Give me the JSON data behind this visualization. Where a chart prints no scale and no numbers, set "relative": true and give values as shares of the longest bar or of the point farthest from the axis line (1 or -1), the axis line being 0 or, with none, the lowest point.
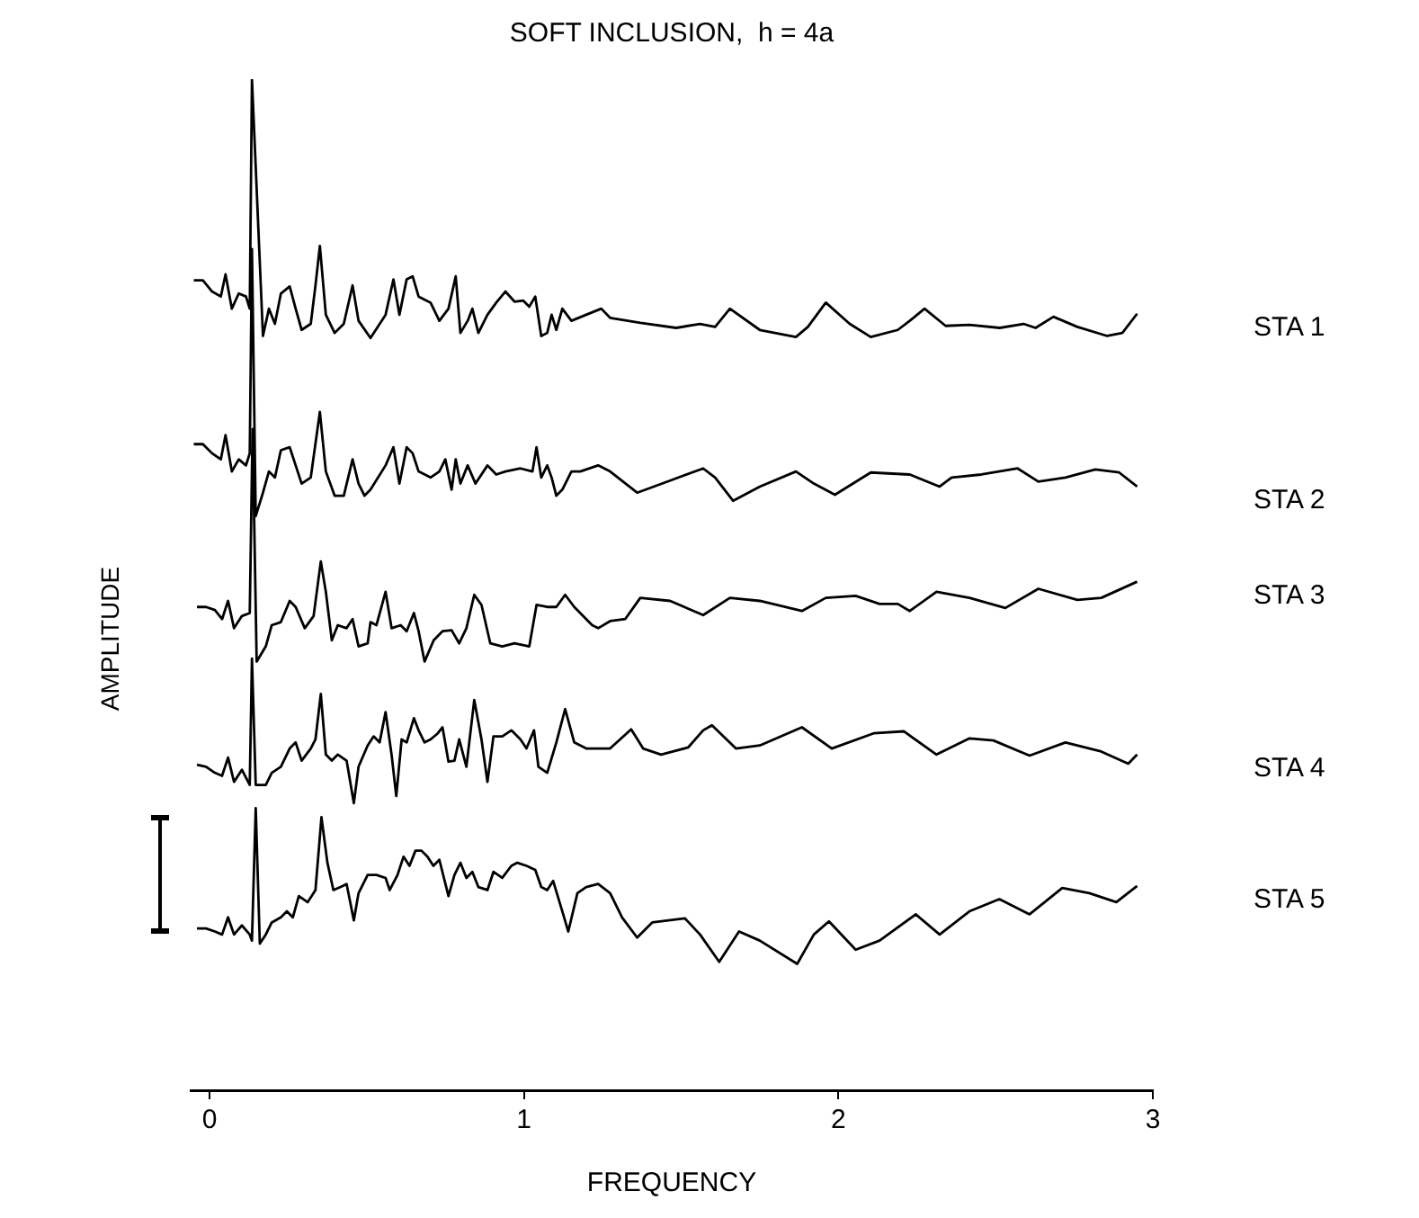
{
  "chart_data": {
    "type": "line",
    "title": "SOFT INCLUSION,  h = 4a",
    "xlabel": "FREQUENCY",
    "ylabel": "AMPLITUDE",
    "relative": true,
    "legend": false,
    "grid": false,
    "xlim": [
      -0.06,
      3
    ],
    "xticks": [
      0,
      1,
      2,
      3
    ],
    "series": [
      {
        "name": "STA 1",
        "color": "#000000",
        "x": [
          -0.05,
          -0.021,
          0.008,
          0.036,
          0.051,
          0.071,
          0.093,
          0.116,
          0.128,
          0.135,
          0.17,
          0.189,
          0.208,
          0.227,
          0.255,
          0.274,
          0.293,
          0.322,
          0.337,
          0.351,
          0.37,
          0.398,
          0.427,
          0.455,
          0.474,
          0.512,
          0.56,
          0.585,
          0.604,
          0.627,
          0.646,
          0.665,
          0.703,
          0.731,
          0.76,
          0.783,
          0.798,
          0.821,
          0.836,
          0.855,
          0.884,
          0.912,
          0.941,
          0.97,
          0.998,
          1.017,
          1.036,
          1.055,
          1.074,
          1.088,
          1.103,
          1.122,
          1.151,
          1.198,
          1.246,
          1.274,
          1.37,
          1.484,
          1.56,
          1.608,
          1.655,
          1.75,
          1.865,
          1.903,
          1.96,
          2.036,
          2.103,
          2.189,
          2.227,
          2.274,
          2.341,
          2.417,
          2.513,
          2.589,
          2.627,
          2.684,
          2.76,
          2.855,
          2.903,
          2.95
        ],
        "values": [
          0.801,
          0.801,
          0.79,
          0.785,
          0.807,
          0.773,
          0.788,
          0.785,
          0.773,
          1.0,
          0.746,
          0.773,
          0.758,
          0.788,
          0.795,
          0.773,
          0.752,
          0.758,
          0.796,
          0.835,
          0.767,
          0.749,
          0.758,
          0.796,
          0.761,
          0.744,
          0.767,
          0.802,
          0.767,
          0.802,
          0.805,
          0.785,
          0.779,
          0.761,
          0.773,
          0.805,
          0.749,
          0.761,
          0.773,
          0.749,
          0.767,
          0.779,
          0.79,
          0.78,
          0.781,
          0.775,
          0.785,
          0.746,
          0.749,
          0.767,
          0.752,
          0.773,
          0.761,
          0.767,
          0.773,
          0.764,
          0.759,
          0.754,
          0.758,
          0.755,
          0.773,
          0.752,
          0.745,
          0.755,
          0.779,
          0.758,
          0.745,
          0.752,
          0.761,
          0.773,
          0.756,
          0.757,
          0.754,
          0.758,
          0.754,
          0.765,
          0.755,
          0.746,
          0.749,
          0.768
        ]
      },
      {
        "name": "STA 2",
        "color": "#000000",
        "x": [
          -0.05,
          -0.021,
          0.008,
          0.036,
          0.051,
          0.071,
          0.093,
          0.116,
          0.128,
          0.135,
          0.147,
          0.17,
          0.189,
          0.208,
          0.227,
          0.255,
          0.274,
          0.293,
          0.322,
          0.351,
          0.37,
          0.398,
          0.427,
          0.455,
          0.474,
          0.493,
          0.512,
          0.56,
          0.585,
          0.604,
          0.627,
          0.646,
          0.665,
          0.703,
          0.731,
          0.75,
          0.77,
          0.783,
          0.798,
          0.821,
          0.846,
          0.884,
          0.912,
          0.941,
          0.989,
          1.027,
          1.04,
          1.055,
          1.074,
          1.088,
          1.103,
          1.122,
          1.151,
          1.179,
          1.236,
          1.274,
          1.36,
          1.465,
          1.57,
          1.608,
          1.665,
          1.75,
          1.865,
          1.922,
          1.989,
          2.103,
          2.227,
          2.322,
          2.36,
          2.455,
          2.57,
          2.636,
          2.722,
          2.817,
          2.893,
          2.95
        ],
        "values": [
          0.639,
          0.639,
          0.63,
          0.624,
          0.648,
          0.612,
          0.624,
          0.618,
          0.63,
          0.832,
          0.568,
          0.591,
          0.612,
          0.606,
          0.633,
          0.636,
          0.618,
          0.6,
          0.606,
          0.671,
          0.612,
          0.588,
          0.588,
          0.624,
          0.6,
          0.588,
          0.594,
          0.618,
          0.636,
          0.6,
          0.636,
          0.63,
          0.612,
          0.606,
          0.612,
          0.624,
          0.594,
          0.624,
          0.6,
          0.618,
          0.6,
          0.618,
          0.609,
          0.612,
          0.615,
          0.612,
          0.636,
          0.606,
          0.618,
          0.606,
          0.588,
          0.594,
          0.612,
          0.612,
          0.618,
          0.612,
          0.591,
          0.603,
          0.615,
          0.606,
          0.583,
          0.597,
          0.612,
          0.6,
          0.589,
          0.611,
          0.609,
          0.597,
          0.606,
          0.609,
          0.615,
          0.602,
          0.606,
          0.614,
          0.611,
          0.597
        ]
      },
      {
        "name": "STA 3",
        "color": "#000000",
        "x": [
          -0.04,
          -0.011,
          0.017,
          0.04,
          0.059,
          0.078,
          0.103,
          0.128,
          0.137,
          0.15,
          0.179,
          0.198,
          0.227,
          0.255,
          0.274,
          0.303,
          0.331,
          0.354,
          0.37,
          0.389,
          0.408,
          0.436,
          0.455,
          0.474,
          0.503,
          0.512,
          0.531,
          0.56,
          0.579,
          0.608,
          0.627,
          0.65,
          0.665,
          0.684,
          0.713,
          0.741,
          0.77,
          0.794,
          0.817,
          0.842,
          0.865,
          0.893,
          0.931,
          0.97,
          1.017,
          1.04,
          1.074,
          1.103,
          1.131,
          1.16,
          1.217,
          1.236,
          1.274,
          1.322,
          1.37,
          1.465,
          1.57,
          1.655,
          1.75,
          1.884,
          1.96,
          2.055,
          2.131,
          2.189,
          2.227,
          2.312,
          2.417,
          2.531,
          2.636,
          2.76,
          2.836,
          2.95
        ],
        "values": [
          0.478,
          0.478,
          0.475,
          0.466,
          0.484,
          0.457,
          0.469,
          0.472,
          0.654,
          0.424,
          0.439,
          0.46,
          0.463,
          0.484,
          0.478,
          0.457,
          0.469,
          0.523,
          0.493,
          0.445,
          0.46,
          0.457,
          0.466,
          0.439,
          0.442,
          0.463,
          0.46,
          0.493,
          0.457,
          0.46,
          0.454,
          0.472,
          0.454,
          0.424,
          0.445,
          0.454,
          0.455,
          0.442,
          0.457,
          0.49,
          0.48,
          0.442,
          0.439,
          0.442,
          0.439,
          0.48,
          0.478,
          0.478,
          0.49,
          0.478,
          0.46,
          0.457,
          0.464,
          0.466,
          0.487,
          0.484,
          0.47,
          0.487,
          0.484,
          0.474,
          0.487,
          0.489,
          0.481,
          0.481,
          0.474,
          0.493,
          0.487,
          0.477,
          0.496,
          0.485,
          0.487,
          0.503
        ]
      },
      {
        "name": "STA 4",
        "color": "#000000",
        "x": [
          -0.04,
          -0.011,
          0.017,
          0.04,
          0.059,
          0.078,
          0.103,
          0.128,
          0.135,
          0.147,
          0.16,
          0.179,
          0.198,
          0.227,
          0.255,
          0.274,
          0.293,
          0.322,
          0.337,
          0.354,
          0.37,
          0.389,
          0.408,
          0.436,
          0.459,
          0.474,
          0.503,
          0.522,
          0.541,
          0.56,
          0.579,
          0.594,
          0.611,
          0.627,
          0.65,
          0.665,
          0.684,
          0.703,
          0.726,
          0.741,
          0.76,
          0.779,
          0.794,
          0.817,
          0.842,
          0.865,
          0.884,
          0.903,
          0.931,
          0.96,
          0.989,
          1.008,
          1.032,
          1.046,
          1.074,
          1.103,
          1.131,
          1.16,
          1.198,
          1.236,
          1.274,
          1.341,
          1.379,
          1.436,
          1.522,
          1.57,
          1.598,
          1.674,
          1.75,
          1.884,
          1.979,
          2.112,
          2.208,
          2.312,
          2.417,
          2.493,
          2.608,
          2.722,
          2.836,
          2.922,
          2.95
        ],
        "values": [
          0.322,
          0.32,
          0.314,
          0.311,
          0.329,
          0.305,
          0.317,
          0.302,
          0.427,
          0.302,
          0.302,
          0.302,
          0.314,
          0.32,
          0.338,
          0.344,
          0.326,
          0.338,
          0.347,
          0.392,
          0.332,
          0.326,
          0.332,
          0.326,
          0.284,
          0.32,
          0.341,
          0.35,
          0.344,
          0.374,
          0.332,
          0.291,
          0.347,
          0.344,
          0.368,
          0.356,
          0.344,
          0.347,
          0.353,
          0.359,
          0.325,
          0.326,
          0.347,
          0.32,
          0.386,
          0.347,
          0.305,
          0.35,
          0.35,
          0.356,
          0.347,
          0.338,
          0.356,
          0.32,
          0.314,
          0.344,
          0.377,
          0.344,
          0.338,
          0.338,
          0.338,
          0.357,
          0.338,
          0.332,
          0.339,
          0.356,
          0.361,
          0.338,
          0.341,
          0.359,
          0.338,
          0.353,
          0.355,
          0.332,
          0.348,
          0.346,
          0.331,
          0.344,
          0.335,
          0.323,
          0.332
        ]
      },
      {
        "name": "STA 5",
        "color": "#000000",
        "x": [
          -0.04,
          -0.011,
          0.017,
          0.04,
          0.059,
          0.078,
          0.103,
          0.128,
          0.135,
          0.147,
          0.16,
          0.179,
          0.198,
          0.227,
          0.246,
          0.265,
          0.284,
          0.312,
          0.337,
          0.356,
          0.375,
          0.394,
          0.417,
          0.436,
          0.459,
          0.474,
          0.503,
          0.531,
          0.56,
          0.573,
          0.598,
          0.617,
          0.636,
          0.655,
          0.674,
          0.693,
          0.712,
          0.731,
          0.76,
          0.779,
          0.798,
          0.817,
          0.836,
          0.855,
          0.884,
          0.903,
          0.931,
          0.96,
          0.979,
          1.008,
          1.036,
          1.055,
          1.074,
          1.093,
          1.122,
          1.141,
          1.17,
          1.198,
          1.236,
          1.274,
          1.312,
          1.36,
          1.408,
          1.512,
          1.56,
          1.621,
          1.684,
          1.75,
          1.869,
          1.922,
          1.97,
          2.055,
          2.131,
          2.246,
          2.322,
          2.417,
          2.512,
          2.608,
          2.712,
          2.798,
          2.884,
          2.95
        ],
        "values": [
          0.16,
          0.16,
          0.157,
          0.154,
          0.171,
          0.154,
          0.163,
          0.154,
          0.148,
          0.279,
          0.145,
          0.154,
          0.166,
          0.171,
          0.177,
          0.171,
          0.192,
          0.186,
          0.198,
          0.27,
          0.225,
          0.198,
          0.201,
          0.204,
          0.168,
          0.195,
          0.213,
          0.213,
          0.21,
          0.198,
          0.213,
          0.231,
          0.222,
          0.237,
          0.237,
          0.231,
          0.222,
          0.228,
          0.192,
          0.213,
          0.225,
          0.21,
          0.216,
          0.201,
          0.198,
          0.216,
          0.21,
          0.222,
          0.225,
          0.222,
          0.218,
          0.201,
          0.198,
          0.207,
          0.177,
          0.157,
          0.195,
          0.201,
          0.204,
          0.195,
          0.171,
          0.151,
          0.166,
          0.17,
          0.154,
          0.127,
          0.157,
          0.148,
          0.125,
          0.154,
          0.167,
          0.139,
          0.148,
          0.174,
          0.154,
          0.177,
          0.189,
          0.174,
          0.2,
          0.195,
          0.186,
          0.202
        ]
      }
    ]
  }
}
